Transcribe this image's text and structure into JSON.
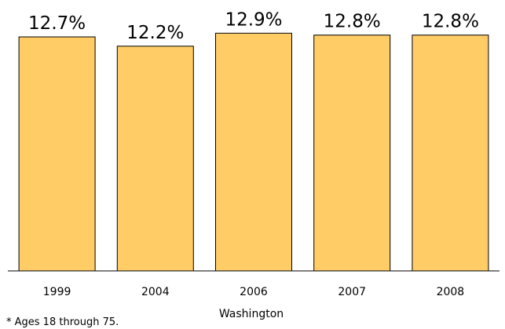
{
  "chart_data": {
    "type": "bar",
    "categories": [
      "1999",
      "2004",
      "2006",
      "2007",
      "2008"
    ],
    "values": [
      12.7,
      12.2,
      12.9,
      12.8,
      12.8
    ],
    "value_labels": [
      "12.7%",
      "12.2%",
      "12.9%",
      "12.8%",
      "12.8%"
    ],
    "title": "",
    "xlabel": "Washington",
    "ylabel": "",
    "ylim": [
      0,
      13.0
    ],
    "grid": false,
    "legend": "none",
    "bar_color": "#FFCC66",
    "bar_edge_color": "#000000"
  },
  "footnote": "* Ages 18 through 75."
}
